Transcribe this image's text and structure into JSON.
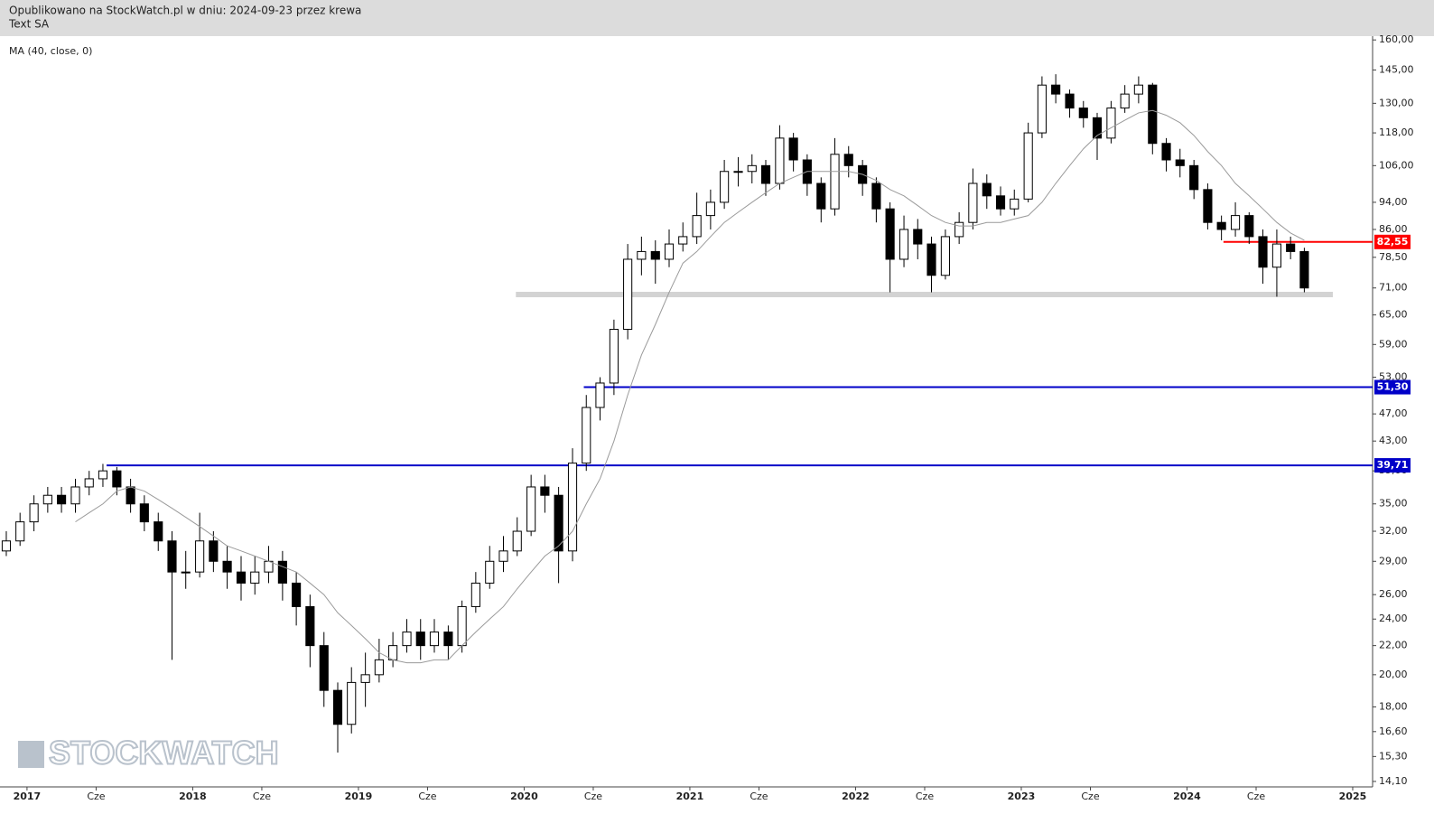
{
  "header": {
    "published": "Opublikowano na StockWatch.pl w dniu: 2024-09-23 przez krewa",
    "company": "Text SA"
  },
  "watermark": "STOCKWATCH",
  "chart_data": {
    "type": "candlestick",
    "log_scale": true,
    "up_color": "#ffffff",
    "down_color": "#000000",
    "wick_color": "#000000",
    "x": [
      2016.875,
      2016.958,
      2017.042,
      2017.125,
      2017.208,
      2017.292,
      2017.375,
      2017.458,
      2017.542,
      2017.625,
      2017.708,
      2017.792,
      2017.875,
      2017.958,
      2018.042,
      2018.125,
      2018.208,
      2018.292,
      2018.375,
      2018.458,
      2018.542,
      2018.625,
      2018.708,
      2018.792,
      2018.875,
      2018.958,
      2019.042,
      2019.125,
      2019.208,
      2019.292,
      2019.375,
      2019.458,
      2019.542,
      2019.625,
      2019.708,
      2019.792,
      2019.875,
      2019.958,
      2020.042,
      2020.125,
      2020.208,
      2020.292,
      2020.375,
      2020.458,
      2020.542,
      2020.625,
      2020.708,
      2020.792,
      2020.875,
      2020.958,
      2021.042,
      2021.125,
      2021.208,
      2021.292,
      2021.375,
      2021.458,
      2021.542,
      2021.625,
      2021.708,
      2021.792,
      2021.875,
      2021.958,
      2022.042,
      2022.125,
      2022.208,
      2022.292,
      2022.375,
      2022.458,
      2022.542,
      2022.625,
      2022.708,
      2022.792,
      2022.875,
      2022.958,
      2023.042,
      2023.125,
      2023.208,
      2023.292,
      2023.375,
      2023.458,
      2023.542,
      2023.625,
      2023.708,
      2023.792,
      2023.875,
      2023.958,
      2024.042,
      2024.125,
      2024.208,
      2024.292,
      2024.375,
      2024.458,
      2024.542,
      2024.625,
      2024.708
    ],
    "open": [
      30,
      31,
      33,
      35,
      36,
      35,
      37,
      38,
      39,
      37,
      35,
      33,
      31,
      28,
      28,
      31,
      29,
      28,
      27,
      28,
      29,
      27,
      25,
      22,
      19,
      17,
      19.5,
      20,
      21,
      22,
      23,
      22,
      23,
      22,
      25,
      27,
      29,
      30,
      32,
      37,
      36,
      30,
      40,
      48,
      52,
      62,
      78,
      80,
      78,
      82,
      84,
      90,
      94,
      104,
      104,
      106,
      100,
      116,
      108,
      100,
      92,
      110,
      106,
      100,
      92,
      78,
      86,
      82,
      74,
      84,
      88,
      100,
      96,
      92,
      95,
      118,
      138,
      134,
      128,
      124,
      116,
      128,
      134,
      138,
      114,
      108,
      106,
      98,
      88,
      86,
      90,
      84,
      76,
      82,
      80
    ],
    "high": [
      32,
      34,
      36,
      37,
      37,
      38,
      39,
      39.9,
      39.5,
      38,
      36,
      34,
      32,
      30,
      34,
      32,
      30.5,
      29.5,
      29.5,
      30.5,
      30,
      28,
      26,
      23,
      19.5,
      20.5,
      21.5,
      22.5,
      23,
      24,
      24,
      24,
      23.5,
      25.5,
      28,
      30.5,
      31.5,
      33.5,
      38.5,
      38.5,
      37,
      42,
      50,
      53,
      64,
      82,
      84,
      83,
      86,
      88,
      97,
      98,
      108,
      109,
      110,
      108,
      121,
      118,
      110,
      102,
      116,
      113,
      108,
      102,
      94,
      90,
      89,
      84,
      86,
      91,
      105,
      103,
      99,
      98,
      122,
      142,
      143,
      136,
      131,
      126,
      131,
      138,
      142,
      139,
      116,
      112,
      108,
      100,
      90,
      94,
      91,
      86,
      86,
      84,
      81
    ],
    "low": [
      29.5,
      30.5,
      32,
      34,
      34,
      34,
      36,
      37,
      36,
      34,
      32,
      30,
      21,
      26.5,
      27.5,
      28,
      26.5,
      25.5,
      26,
      27,
      25.5,
      23.5,
      20.5,
      18,
      15.5,
      16.5,
      18,
      19.5,
      20.5,
      21.5,
      21,
      21.5,
      21,
      21.5,
      24.5,
      26.5,
      28,
      29.5,
      31.5,
      34,
      27,
      29,
      39,
      46,
      50,
      60,
      74,
      72,
      76,
      80,
      82,
      86,
      92,
      99,
      100,
      96,
      98,
      104,
      96,
      88,
      90,
      102,
      96,
      88,
      70,
      76,
      78,
      70,
      73,
      82,
      86,
      92,
      90,
      90,
      94,
      116,
      130,
      124,
      120,
      108,
      114,
      126,
      130,
      110,
      104,
      102,
      95,
      86,
      83,
      84,
      82,
      72,
      69,
      78,
      70
    ],
    "close": [
      31,
      33,
      35,
      36,
      35,
      37,
      38,
      39,
      37,
      35,
      33,
      31,
      28,
      28,
      31,
      29,
      28,
      27,
      28,
      29,
      27,
      25,
      22,
      19,
      17,
      19.5,
      20,
      21,
      22,
      23,
      22,
      23,
      22,
      25,
      27,
      29,
      30,
      32,
      37,
      36,
      30,
      40,
      48,
      52,
      62,
      78,
      80,
      78,
      82,
      84,
      90,
      94,
      104,
      104,
      106,
      100,
      116,
      108,
      100,
      92,
      110,
      106,
      100,
      92,
      78,
      86,
      82,
      74,
      84,
      88,
      100,
      96,
      92,
      95,
      118,
      138,
      134,
      128,
      124,
      116,
      128,
      134,
      138,
      114,
      108,
      106,
      98,
      88,
      86,
      90,
      84,
      76,
      82,
      80,
      71
    ],
    "ma": {
      "name": "MA (40, close, 0)",
      "color": "#9a9a9a",
      "values": [
        null,
        null,
        null,
        null,
        null,
        33,
        34,
        35,
        36.5,
        37,
        36.5,
        35.5,
        34.5,
        33.5,
        32.5,
        31.5,
        30.5,
        30,
        29.5,
        29,
        28.5,
        28,
        27,
        26,
        24.5,
        23.5,
        22.5,
        21.5,
        21,
        20.8,
        20.8,
        21,
        21,
        22,
        23,
        24,
        25,
        26.5,
        28,
        29.5,
        30.5,
        32,
        35,
        38,
        43,
        50,
        57,
        63,
        70,
        77,
        80,
        84,
        88,
        91,
        94,
        97,
        100,
        102,
        104,
        104,
        104,
        104,
        103,
        101,
        98,
        96,
        93,
        90,
        88,
        87,
        87,
        88,
        88,
        89,
        90,
        94,
        100,
        106,
        112,
        117,
        120,
        123,
        126,
        127,
        125,
        122,
        117,
        111,
        106,
        100,
        96,
        92,
        88,
        85,
        83
      ]
    },
    "levels": [
      {
        "value": 69.5,
        "color": "#d3d3d3",
        "start": 2019.95,
        "end": 2024.88
      },
      {
        "value": 82.55,
        "label": "82,55",
        "color": "#ff0000",
        "start": 2024.22
      },
      {
        "value": 51.3,
        "label": "51,30",
        "color": "#0000c8",
        "start": 2020.36
      },
      {
        "value": 39.71,
        "label": "39,71",
        "color": "#0000c8",
        "start": 2017.48
      }
    ],
    "xlim": [
      2016.837,
      2025.12
    ],
    "xticks": [
      2017,
      {
        "value": 2017.417,
        "label": "Cze"
      },
      2018,
      {
        "value": 2018.417,
        "label": "Cze"
      },
      2019,
      {
        "value": 2019.417,
        "label": "Cze"
      },
      2020,
      {
        "value": 2020.417,
        "label": "Cze"
      },
      2021,
      {
        "value": 2021.417,
        "label": "Cze"
      },
      2022,
      {
        "value": 2022.417,
        "label": "Cze"
      },
      2023,
      {
        "value": 2023.417,
        "label": "Cze"
      },
      2024,
      {
        "value": 2024.417,
        "label": "Cze"
      },
      2025
    ],
    "ylim": [
      13.85,
      162
    ],
    "yticks": [
      {
        "value": 160,
        "label": "160,00"
      },
      {
        "value": 145,
        "label": "145,00"
      },
      {
        "value": 130,
        "label": "130,00"
      },
      {
        "value": 118,
        "label": "118,00"
      },
      {
        "value": 106,
        "label": "106,00"
      },
      {
        "value": 94,
        "label": "94,00"
      },
      {
        "value": 86,
        "label": "86,00"
      },
      {
        "value": 78.5,
        "label": "78,50"
      },
      {
        "value": 71,
        "label": "71,00"
      },
      {
        "value": 65,
        "label": "65,00"
      },
      {
        "value": 59,
        "label": "59,00"
      },
      {
        "value": 53,
        "label": "53,00"
      },
      {
        "value": 47,
        "label": "47,00"
      },
      {
        "value": 43,
        "label": "43,00"
      },
      {
        "value": 39,
        "label": "39,00"
      },
      {
        "value": 35,
        "label": "35,00"
      },
      {
        "value": 32,
        "label": "32,00"
      },
      {
        "value": 29,
        "label": "29,00"
      },
      {
        "value": 26,
        "label": "26,00"
      },
      {
        "value": 24,
        "label": "24,00"
      },
      {
        "value": 22,
        "label": "22,00"
      },
      {
        "value": 20,
        "label": "20,00"
      },
      {
        "value": 18,
        "label": "18,00"
      },
      {
        "value": 16.6,
        "label": "16,60"
      },
      {
        "value": 15.3,
        "label": "15,30"
      },
      {
        "value": 14.1,
        "label": "14,10"
      }
    ]
  }
}
